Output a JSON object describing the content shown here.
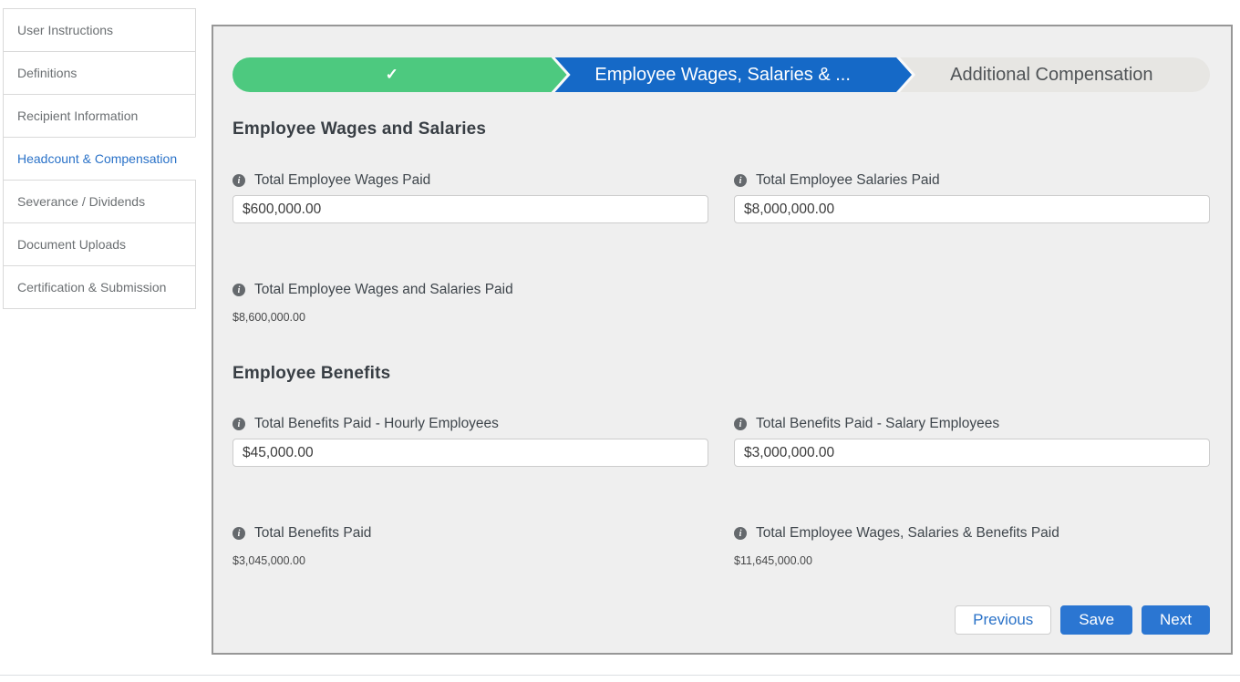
{
  "icons": {
    "info": "i",
    "check": "✓"
  },
  "sidebar": {
    "items": [
      {
        "label": "User Instructions",
        "active": false
      },
      {
        "label": "Definitions",
        "active": false
      },
      {
        "label": "Recipient Information",
        "active": false
      },
      {
        "label": "Headcount & Compensation",
        "active": true
      },
      {
        "label": "Severance / Dividends",
        "active": false
      },
      {
        "label": "Document Uploads",
        "active": false
      },
      {
        "label": "Certification & Submission",
        "active": false
      }
    ]
  },
  "stepper": {
    "current_label": "Employee Wages, Salaries & ...",
    "upcoming_label": "Additional Compensation"
  },
  "wages_section": {
    "heading": "Employee Wages and Salaries",
    "wages_paid": {
      "label": "Total Employee Wages Paid",
      "value": "$600,000.00"
    },
    "salaries_paid": {
      "label": "Total Employee Salaries Paid",
      "value": "$8,000,000.00"
    },
    "total": {
      "label": "Total Employee Wages and Salaries Paid",
      "value": "$8,600,000.00"
    }
  },
  "benefits_section": {
    "heading": "Employee Benefits",
    "hourly": {
      "label": "Total Benefits Paid - Hourly Employees",
      "value": "$45,000.00"
    },
    "salary": {
      "label": "Total Benefits Paid - Salary Employees",
      "value": "$3,000,000.00"
    },
    "total_benefits": {
      "label": "Total Benefits Paid",
      "value": "$3,045,000.00"
    },
    "grand_total": {
      "label": "Total Employee Wages, Salaries & Benefits Paid",
      "value": "$11,645,000.00"
    }
  },
  "buttons": {
    "previous": "Previous",
    "save": "Save",
    "next": "Next"
  },
  "colors": {
    "completed_green": "#4dc97f",
    "current_blue": "#1569c7",
    "button_blue": "#2b76d2",
    "panel_bg": "#efefef",
    "active_link_blue": "#2a72c8"
  }
}
